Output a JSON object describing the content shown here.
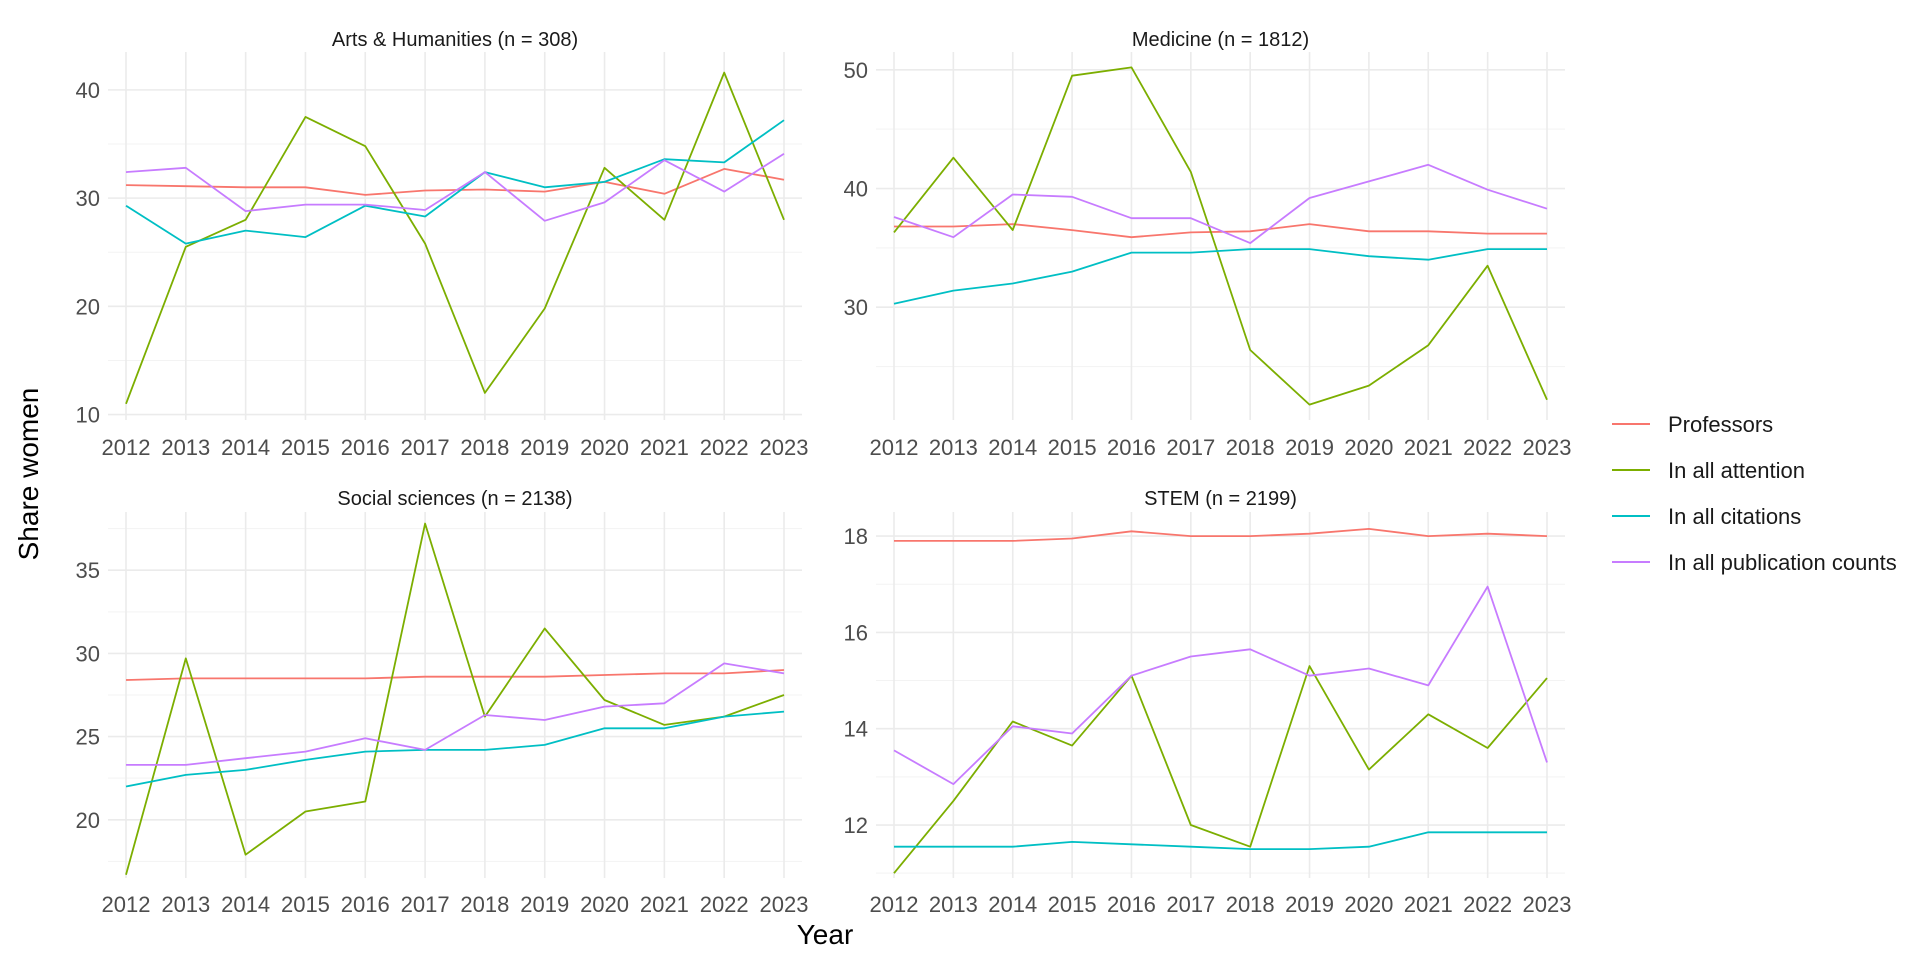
{
  "chart_data": {
    "type": "line",
    "xlabel": "Year",
    "ylabel": "Share women",
    "x": [
      2012,
      2013,
      2014,
      2015,
      2016,
      2017,
      2018,
      2019,
      2020,
      2021,
      2022,
      2023
    ],
    "legend": {
      "placement": "right",
      "entries": [
        {
          "name": "Professors",
          "color": "#F8766D"
        },
        {
          "name": "In all attention",
          "color": "#7CAE00"
        },
        {
          "name": "In all citations",
          "color": "#00BFC4"
        },
        {
          "name": "In all publication counts",
          "color": "#C77CFF"
        }
      ]
    },
    "panels": [
      {
        "title": "Arts & Humanities (n = 308)",
        "ylim": [
          9.5,
          43.5
        ],
        "yticks": [
          10,
          20,
          30,
          40
        ],
        "yticks_minor": [
          15,
          25,
          35
        ],
        "grid": true,
        "series": [
          {
            "name": "Professors",
            "values": [
              31.2,
              31.1,
              31.0,
              31.0,
              30.3,
              30.7,
              30.8,
              30.6,
              31.5,
              30.4,
              32.7,
              31.7
            ]
          },
          {
            "name": "In all attention",
            "values": [
              11.0,
              25.5,
              28.0,
              37.5,
              34.8,
              25.8,
              12.0,
              19.8,
              32.8,
              28.0,
              41.6,
              28.0
            ]
          },
          {
            "name": "In all citations",
            "values": [
              29.3,
              25.8,
              27.0,
              26.4,
              29.3,
              28.3,
              32.4,
              31.0,
              31.5,
              33.6,
              33.3,
              37.2
            ]
          },
          {
            "name": "In all publication counts",
            "values": [
              32.4,
              32.8,
              28.8,
              29.4,
              29.4,
              28.9,
              32.4,
              27.9,
              29.6,
              33.5,
              30.6,
              34.1
            ]
          }
        ]
      },
      {
        "title": "Medicine (n = 1812)",
        "ylim": [
          20.5,
          51.5
        ],
        "yticks": [
          30,
          40,
          50
        ],
        "yticks_minor": [
          25,
          35,
          45
        ],
        "grid": true,
        "series": [
          {
            "name": "Professors",
            "values": [
              36.8,
              36.8,
              37.0,
              36.5,
              35.9,
              36.3,
              36.4,
              37.0,
              36.4,
              36.4,
              36.2,
              36.2
            ]
          },
          {
            "name": "In all attention",
            "values": [
              36.3,
              42.6,
              36.5,
              49.5,
              50.2,
              41.4,
              26.4,
              21.8,
              23.4,
              26.8,
              33.5,
              22.2
            ]
          },
          {
            "name": "In all citations",
            "values": [
              30.3,
              31.4,
              32.0,
              33.0,
              34.6,
              34.6,
              34.9,
              34.9,
              34.3,
              34.0,
              34.9,
              34.9
            ]
          },
          {
            "name": "In all publication counts",
            "values": [
              37.6,
              35.9,
              39.5,
              39.3,
              37.5,
              37.5,
              35.4,
              39.2,
              40.6,
              42.0,
              39.9,
              38.3
            ]
          }
        ]
      },
      {
        "title": "Social sciences (n = 2138)",
        "ylim": [
          16.5,
          38.5
        ],
        "yticks": [
          20,
          25,
          30,
          35
        ],
        "yticks_minor": [
          17.5,
          22.5,
          27.5,
          32.5,
          37.5
        ],
        "grid": true,
        "series": [
          {
            "name": "Professors",
            "values": [
              28.4,
              28.5,
              28.5,
              28.5,
              28.5,
              28.6,
              28.6,
              28.6,
              28.7,
              28.8,
              28.8,
              29.0
            ]
          },
          {
            "name": "In all attention",
            "values": [
              16.7,
              29.7,
              17.9,
              20.5,
              21.1,
              37.8,
              26.2,
              31.5,
              27.2,
              25.7,
              26.2,
              27.5
            ]
          },
          {
            "name": "In all citations",
            "values": [
              22.0,
              22.7,
              23.0,
              23.6,
              24.1,
              24.2,
              24.2,
              24.5,
              25.5,
              25.5,
              26.2,
              26.5
            ]
          },
          {
            "name": "In all publication counts",
            "values": [
              23.3,
              23.3,
              23.7,
              24.1,
              24.9,
              24.2,
              26.3,
              26.0,
              26.8,
              27.0,
              29.4,
              28.8
            ]
          }
        ]
      },
      {
        "title": "STEM (n = 2199)",
        "ylim": [
          10.9,
          18.5
        ],
        "yticks": [
          12,
          14,
          16,
          18
        ],
        "yticks_minor": [
          11,
          13,
          15,
          17
        ],
        "grid": true,
        "series": [
          {
            "name": "Professors",
            "values": [
              17.9,
              17.9,
              17.9,
              17.95,
              18.1,
              18.0,
              18.0,
              18.05,
              18.15,
              18.0,
              18.05,
              18.0
            ]
          },
          {
            "name": "In all attention",
            "values": [
              11.0,
              12.5,
              14.15,
              13.65,
              15.1,
              12.0,
              11.55,
              15.3,
              13.15,
              14.3,
              13.6,
              15.05
            ]
          },
          {
            "name": "In all citations",
            "values": [
              11.55,
              11.55,
              11.55,
              11.65,
              11.6,
              11.55,
              11.5,
              11.5,
              11.55,
              11.85,
              11.85,
              11.85
            ]
          },
          {
            "name": "In all publication counts",
            "values": [
              13.55,
              12.85,
              14.05,
              13.9,
              15.1,
              15.5,
              15.65,
              15.1,
              15.25,
              14.9,
              16.95,
              13.3
            ]
          }
        ]
      }
    ]
  }
}
